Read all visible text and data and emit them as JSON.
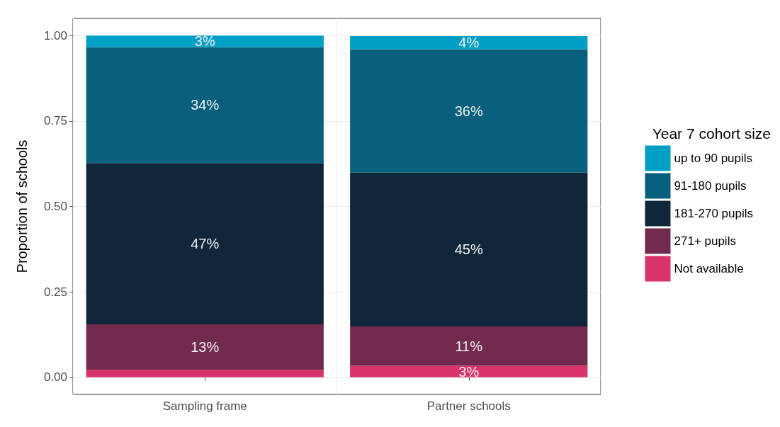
{
  "chart_data": {
    "type": "bar",
    "stacked": true,
    "ylabel": "Proportion of schools",
    "legend_title": "Year 7 cohort size",
    "legend": "right",
    "grid": true,
    "categories": [
      "Sampling frame",
      "Partner schools"
    ],
    "ylim": [
      -0.05,
      1.05
    ],
    "yticks": [
      {
        "value": 0,
        "label": "0.00"
      },
      {
        "value": 0.25,
        "label": "0.25"
      },
      {
        "value": 0.5,
        "label": "0.50"
      },
      {
        "value": 0.75,
        "label": "0.75"
      },
      {
        "value": 1,
        "label": "1.00"
      }
    ],
    "series": [
      {
        "name": "Not available",
        "color": "#d8336a",
        "values": [
          0.022,
          0.034
        ],
        "value_labels": [
          null,
          "3%"
        ]
      },
      {
        "name": "271+ pupils",
        "color": "#722a4e",
        "values": [
          0.133,
          0.115
        ],
        "value_labels": [
          "13%",
          "11%"
        ]
      },
      {
        "name": "181-270 pupils",
        "color": "#10263b",
        "values": [
          0.472,
          0.45
        ],
        "value_labels": [
          "47%",
          "45%"
        ]
      },
      {
        "name": "91-180 pupils",
        "color": "#08607e",
        "values": [
          0.339,
          0.361
        ],
        "value_labels": [
          "34%",
          "36%"
        ]
      },
      {
        "name": "up to 90 pupils",
        "color": "#00a0c6",
        "values": [
          0.034,
          0.038
        ],
        "value_labels": [
          "3%",
          "4%"
        ]
      }
    ]
  }
}
